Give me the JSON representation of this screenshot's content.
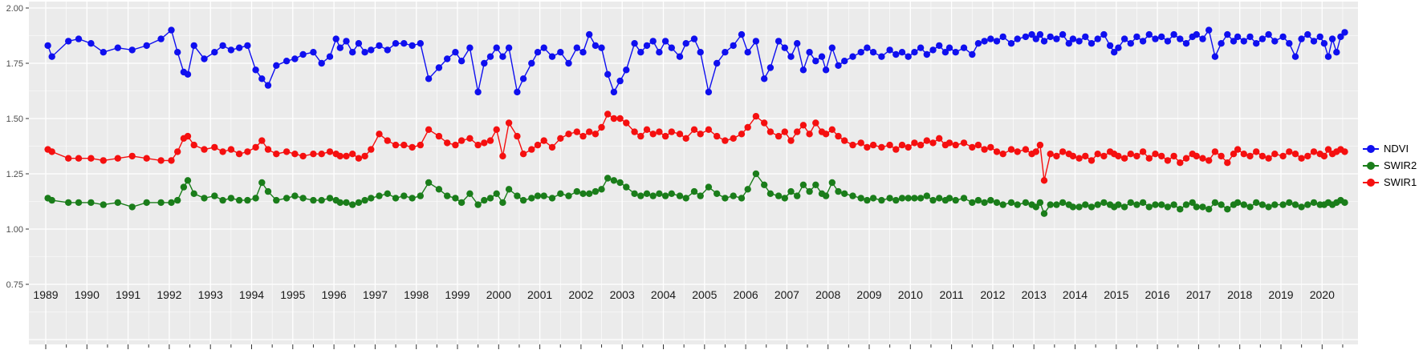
{
  "chart_style": {
    "panel_bg": "#EBEBEB",
    "grid_color": "#FFFFFF",
    "axis_text_color": "#4D4D4D",
    "year_text_color": "#1A1A1A",
    "tick_color": "#333333"
  },
  "legend": {
    "items": [
      {
        "label": "NDVI",
        "color": "#0F0FEF"
      },
      {
        "label": "SWIR2",
        "color": "#1A7D1A"
      },
      {
        "label": "SWIR1",
        "color": "#F50F0F"
      }
    ]
  },
  "y_axis": {
    "ticks": [
      "2.00",
      "1.75",
      "1.50",
      "1.25",
      "1.00",
      "0.75"
    ],
    "values": [
      2.0,
      1.75,
      1.5,
      1.25,
      1.0,
      0.75
    ]
  },
  "x_axis": {
    "years": [
      1989,
      1990,
      1991,
      1992,
      1993,
      1994,
      1995,
      1996,
      1997,
      1998,
      1999,
      2000,
      2001,
      2002,
      2003,
      2004,
      2005,
      2006,
      2007,
      2008,
      2009,
      2010,
      2011,
      2012,
      2013,
      2014,
      2015,
      2016,
      2017,
      2018,
      2019,
      2020
    ]
  },
  "chart_data": {
    "type": "line",
    "markers": true,
    "title": "",
    "xlabel": "",
    "ylabel": "",
    "ylim_labeled": [
      0.75,
      2.0
    ],
    "x_range": [
      1988.6,
      2020.85
    ],
    "grid": true,
    "legend_position": "right",
    "x": [
      1989.05,
      1989.15,
      1989.55,
      1989.8,
      1990.1,
      1990.4,
      1990.75,
      1991.1,
      1991.45,
      1991.8,
      1992.05,
      1992.2,
      1992.35,
      1992.45,
      1992.6,
      1992.85,
      1993.1,
      1993.3,
      1993.5,
      1993.7,
      1993.9,
      1994.1,
      1994.25,
      1994.4,
      1994.6,
      1994.85,
      1995.05,
      1995.25,
      1995.5,
      1995.7,
      1995.9,
      1996.05,
      1996.15,
      1996.3,
      1996.45,
      1996.6,
      1996.75,
      1996.9,
      1997.1,
      1997.3,
      1997.5,
      1997.7,
      1997.9,
      1998.1,
      1998.3,
      1998.55,
      1998.75,
      1998.95,
      1999.1,
      1999.3,
      1999.5,
      1999.65,
      1999.8,
      1999.95,
      2000.1,
      2000.25,
      2000.45,
      2000.6,
      2000.8,
      2000.95,
      2001.1,
      2001.3,
      2001.5,
      2001.7,
      2001.9,
      2002.05,
      2002.2,
      2002.35,
      2002.5,
      2002.65,
      2002.8,
      2002.95,
      2003.1,
      2003.3,
      2003.45,
      2003.6,
      2003.75,
      2003.9,
      2004.05,
      2004.2,
      2004.4,
      2004.55,
      2004.75,
      2004.9,
      2005.1,
      2005.3,
      2005.5,
      2005.7,
      2005.9,
      2006.05,
      2006.25,
      2006.45,
      2006.6,
      2006.8,
      2006.95,
      2007.1,
      2007.25,
      2007.4,
      2007.55,
      2007.7,
      2007.85,
      2007.95,
      2008.1,
      2008.25,
      2008.4,
      2008.6,
      2008.8,
      2008.95,
      2009.1,
      2009.3,
      2009.5,
      2009.65,
      2009.8,
      2009.95,
      2010.1,
      2010.25,
      2010.4,
      2010.55,
      2010.7,
      2010.85,
      2010.95,
      2011.1,
      2011.3,
      2011.5,
      2011.65,
      2011.8,
      2011.95,
      2012.1,
      2012.25,
      2012.45,
      2012.6,
      2012.8,
      2012.95,
      2013.05,
      2013.15,
      2013.25,
      2013.4,
      2013.55,
      2013.7,
      2013.85,
      2013.95,
      2014.1,
      2014.25,
      2014.4,
      2014.55,
      2014.7,
      2014.85,
      2014.95,
      2015.05,
      2015.2,
      2015.35,
      2015.5,
      2015.65,
      2015.8,
      2015.95,
      2016.1,
      2016.25,
      2016.4,
      2016.55,
      2016.7,
      2016.85,
      2016.95,
      2017.1,
      2017.25,
      2017.4,
      2017.55,
      2017.7,
      2017.85,
      2017.95,
      2018.1,
      2018.25,
      2018.4,
      2018.55,
      2018.7,
      2018.85,
      2019.05,
      2019.2,
      2019.35,
      2019.5,
      2019.65,
      2019.8,
      2019.95,
      2020.05,
      2020.15,
      2020.25,
      2020.35,
      2020.45,
      2020.55
    ],
    "series": [
      {
        "name": "NDVI",
        "color": "#0F0FEF",
        "values": [
          1.83,
          1.78,
          1.85,
          1.86,
          1.84,
          1.8,
          1.82,
          1.81,
          1.83,
          1.86,
          1.9,
          1.8,
          1.71,
          1.7,
          1.83,
          1.77,
          1.8,
          1.83,
          1.81,
          1.82,
          1.83,
          1.72,
          1.68,
          1.65,
          1.74,
          1.76,
          1.77,
          1.79,
          1.8,
          1.75,
          1.78,
          1.86,
          1.82,
          1.85,
          1.8,
          1.84,
          1.8,
          1.81,
          1.83,
          1.81,
          1.84,
          1.84,
          1.83,
          1.84,
          1.68,
          1.73,
          1.77,
          1.8,
          1.76,
          1.82,
          1.62,
          1.75,
          1.78,
          1.82,
          1.78,
          1.82,
          1.62,
          1.68,
          1.75,
          1.8,
          1.82,
          1.78,
          1.8,
          1.75,
          1.82,
          1.8,
          1.88,
          1.83,
          1.82,
          1.7,
          1.62,
          1.67,
          1.72,
          1.84,
          1.8,
          1.83,
          1.85,
          1.8,
          1.85,
          1.82,
          1.78,
          1.84,
          1.86,
          1.8,
          1.62,
          1.75,
          1.8,
          1.83,
          1.88,
          1.8,
          1.85,
          1.68,
          1.73,
          1.85,
          1.82,
          1.78,
          1.84,
          1.72,
          1.8,
          1.76,
          1.78,
          1.72,
          1.82,
          1.74,
          1.76,
          1.78,
          1.8,
          1.82,
          1.8,
          1.78,
          1.81,
          1.79,
          1.8,
          1.78,
          1.8,
          1.82,
          1.79,
          1.81,
          1.83,
          1.8,
          1.82,
          1.8,
          1.82,
          1.79,
          1.84,
          1.85,
          1.86,
          1.85,
          1.87,
          1.84,
          1.86,
          1.87,
          1.88,
          1.86,
          1.88,
          1.85,
          1.87,
          1.86,
          1.88,
          1.84,
          1.86,
          1.85,
          1.87,
          1.84,
          1.86,
          1.88,
          1.83,
          1.8,
          1.82,
          1.86,
          1.84,
          1.87,
          1.85,
          1.88,
          1.86,
          1.87,
          1.85,
          1.88,
          1.86,
          1.84,
          1.87,
          1.88,
          1.86,
          1.9,
          1.78,
          1.84,
          1.88,
          1.85,
          1.87,
          1.85,
          1.87,
          1.84,
          1.86,
          1.88,
          1.85,
          1.87,
          1.84,
          1.78,
          1.86,
          1.88,
          1.85,
          1.87,
          1.84,
          1.78,
          1.86,
          1.8,
          1.87,
          1.89
        ]
      },
      {
        "name": "SWIR2",
        "color": "#1A7D1A",
        "values": [
          1.14,
          1.13,
          1.12,
          1.12,
          1.12,
          1.11,
          1.12,
          1.1,
          1.12,
          1.12,
          1.12,
          1.13,
          1.19,
          1.22,
          1.16,
          1.14,
          1.15,
          1.13,
          1.14,
          1.13,
          1.13,
          1.14,
          1.21,
          1.17,
          1.13,
          1.14,
          1.15,
          1.14,
          1.13,
          1.13,
          1.14,
          1.13,
          1.12,
          1.12,
          1.11,
          1.12,
          1.13,
          1.14,
          1.15,
          1.16,
          1.14,
          1.15,
          1.14,
          1.15,
          1.21,
          1.18,
          1.15,
          1.14,
          1.12,
          1.16,
          1.11,
          1.13,
          1.14,
          1.16,
          1.12,
          1.18,
          1.15,
          1.13,
          1.14,
          1.15,
          1.15,
          1.14,
          1.16,
          1.15,
          1.17,
          1.16,
          1.16,
          1.17,
          1.18,
          1.23,
          1.22,
          1.21,
          1.19,
          1.16,
          1.15,
          1.16,
          1.15,
          1.16,
          1.15,
          1.16,
          1.15,
          1.14,
          1.17,
          1.15,
          1.19,
          1.16,
          1.14,
          1.15,
          1.14,
          1.18,
          1.25,
          1.2,
          1.16,
          1.15,
          1.14,
          1.17,
          1.15,
          1.2,
          1.17,
          1.2,
          1.16,
          1.15,
          1.21,
          1.17,
          1.16,
          1.15,
          1.14,
          1.13,
          1.14,
          1.13,
          1.14,
          1.13,
          1.14,
          1.14,
          1.14,
          1.14,
          1.15,
          1.13,
          1.14,
          1.13,
          1.14,
          1.13,
          1.14,
          1.12,
          1.13,
          1.12,
          1.13,
          1.12,
          1.11,
          1.12,
          1.11,
          1.12,
          1.11,
          1.1,
          1.12,
          1.07,
          1.11,
          1.11,
          1.12,
          1.11,
          1.1,
          1.1,
          1.11,
          1.1,
          1.11,
          1.12,
          1.11,
          1.1,
          1.11,
          1.1,
          1.12,
          1.11,
          1.12,
          1.1,
          1.11,
          1.11,
          1.1,
          1.11,
          1.09,
          1.11,
          1.12,
          1.1,
          1.1,
          1.09,
          1.12,
          1.11,
          1.09,
          1.11,
          1.12,
          1.11,
          1.1,
          1.12,
          1.11,
          1.1,
          1.11,
          1.11,
          1.12,
          1.11,
          1.1,
          1.11,
          1.12,
          1.11,
          1.11,
          1.12,
          1.11,
          1.12,
          1.13,
          1.12
        ]
      },
      {
        "name": "SWIR1",
        "color": "#F50F0F",
        "values": [
          1.36,
          1.35,
          1.32,
          1.32,
          1.32,
          1.31,
          1.32,
          1.33,
          1.32,
          1.31,
          1.31,
          1.35,
          1.41,
          1.42,
          1.38,
          1.36,
          1.37,
          1.35,
          1.36,
          1.34,
          1.35,
          1.37,
          1.4,
          1.36,
          1.34,
          1.35,
          1.34,
          1.33,
          1.34,
          1.34,
          1.35,
          1.34,
          1.33,
          1.33,
          1.34,
          1.32,
          1.33,
          1.36,
          1.43,
          1.4,
          1.38,
          1.38,
          1.37,
          1.38,
          1.45,
          1.42,
          1.39,
          1.38,
          1.4,
          1.41,
          1.38,
          1.39,
          1.4,
          1.45,
          1.33,
          1.48,
          1.42,
          1.34,
          1.36,
          1.38,
          1.4,
          1.37,
          1.41,
          1.43,
          1.44,
          1.42,
          1.44,
          1.43,
          1.46,
          1.52,
          1.5,
          1.5,
          1.48,
          1.44,
          1.42,
          1.45,
          1.43,
          1.44,
          1.42,
          1.44,
          1.43,
          1.41,
          1.45,
          1.43,
          1.45,
          1.42,
          1.4,
          1.41,
          1.43,
          1.46,
          1.51,
          1.48,
          1.44,
          1.42,
          1.44,
          1.4,
          1.44,
          1.47,
          1.43,
          1.48,
          1.44,
          1.43,
          1.45,
          1.42,
          1.4,
          1.38,
          1.39,
          1.37,
          1.38,
          1.37,
          1.38,
          1.36,
          1.38,
          1.37,
          1.39,
          1.38,
          1.4,
          1.39,
          1.41,
          1.38,
          1.39,
          1.38,
          1.39,
          1.37,
          1.38,
          1.36,
          1.37,
          1.35,
          1.34,
          1.36,
          1.35,
          1.36,
          1.34,
          1.35,
          1.38,
          1.22,
          1.34,
          1.33,
          1.35,
          1.34,
          1.33,
          1.32,
          1.33,
          1.31,
          1.34,
          1.33,
          1.35,
          1.34,
          1.33,
          1.32,
          1.34,
          1.33,
          1.35,
          1.32,
          1.34,
          1.33,
          1.31,
          1.33,
          1.3,
          1.32,
          1.34,
          1.33,
          1.32,
          1.31,
          1.35,
          1.33,
          1.3,
          1.34,
          1.36,
          1.34,
          1.33,
          1.35,
          1.33,
          1.32,
          1.34,
          1.33,
          1.35,
          1.34,
          1.32,
          1.33,
          1.35,
          1.34,
          1.33,
          1.36,
          1.34,
          1.35,
          1.36,
          1.35
        ]
      }
    ]
  }
}
